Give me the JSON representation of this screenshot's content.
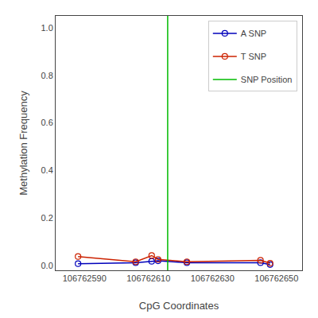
{
  "chart_data": {
    "type": "line",
    "xlabel": "CpG Coordinates",
    "ylabel": "Methylation Frequency",
    "xlim": [
      106762581,
      106762658
    ],
    "ylim": [
      -0.02,
      1.05
    ],
    "xticks": [
      106762590,
      106762610,
      106762630,
      106762650
    ],
    "yticks": [
      {
        "value": 0.0,
        "label": "0.0"
      },
      0.2,
      0.4,
      0.6,
      0.8,
      {
        "value": 1.0,
        "label": "1.0"
      }
    ],
    "grid": false,
    "legend": "upper right",
    "series": [
      {
        "name": "A SNP",
        "type": "line",
        "color": "#0000bb",
        "marker": "circle-open",
        "x": [
          106762588,
          106762606,
          106762611,
          106762613,
          106762622,
          106762645,
          106762648
        ],
        "values": [
          0.008,
          0.012,
          0.018,
          0.02,
          0.012,
          0.012,
          0.004
        ]
      },
      {
        "name": "T SNP",
        "type": "line",
        "color": "#cc2200",
        "marker": "circle-open",
        "x": [
          106762588,
          106762606,
          106762611,
          106762613,
          106762622,
          106762645,
          106762648
        ],
        "values": [
          0.038,
          0.016,
          0.042,
          0.026,
          0.016,
          0.022,
          0.01
        ]
      },
      {
        "name": "SNP Position",
        "type": "vline",
        "color": "#00bb00",
        "x": [
          106762616
        ]
      }
    ]
  }
}
